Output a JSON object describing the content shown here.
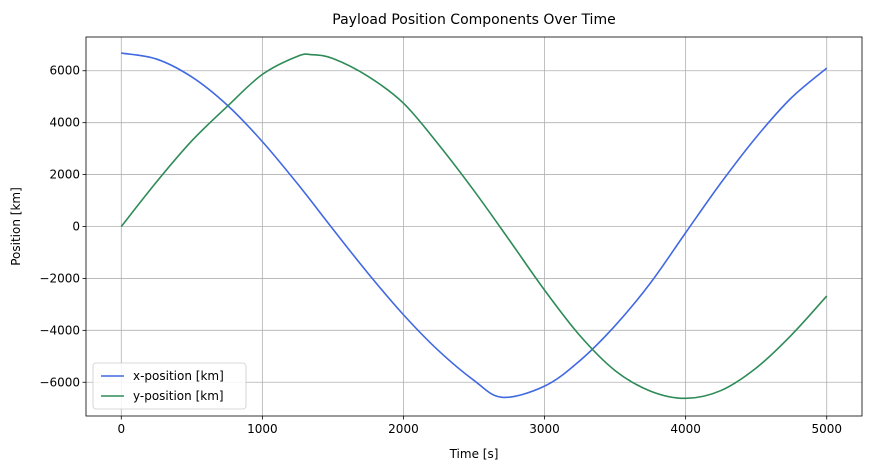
{
  "chart_data": {
    "type": "line",
    "title": "Payload Position Components Over Time",
    "xlabel": "Time [s]",
    "ylabel": "Position [km]",
    "xlim": [
      -250,
      5250
    ],
    "ylim": [
      -7300,
      7300
    ],
    "xticks": [
      0,
      1000,
      2000,
      3000,
      4000,
      5000
    ],
    "xtick_labels": [
      "0",
      "1000",
      "2000",
      "3000",
      "4000",
      "5000"
    ],
    "yticks": [
      -6000,
      -4000,
      -2000,
      0,
      2000,
      4000,
      6000
    ],
    "ytick_labels": [
      "−6000",
      "−4000",
      "−2000",
      "0",
      "2000",
      "4000",
      "6000"
    ],
    "grid": true,
    "legend_position": "lower-left",
    "series": [
      {
        "name": "x-position [km]",
        "color": "#4169e1",
        "x": [
          0,
          250,
          500,
          750,
          1000,
          1250,
          1500,
          1750,
          2000,
          2250,
          2500,
          2700,
          3000,
          3250,
          3500,
          3750,
          4000,
          4250,
          4500,
          4750,
          5000
        ],
        "y": [
          6680,
          6450,
          5760,
          4680,
          3270,
          1640,
          -100,
          -1810,
          -3400,
          -4790,
          -5930,
          -6580,
          -6150,
          -5170,
          -3820,
          -2180,
          -240,
          1680,
          3440,
          4960,
          6100
        ]
      },
      {
        "name": "y-position [km]",
        "color": "#2e8b57",
        "x": [
          0,
          250,
          500,
          750,
          1000,
          1250,
          1350,
          1500,
          1750,
          2000,
          2250,
          2500,
          2750,
          3000,
          3250,
          3500,
          3750,
          4000,
          4250,
          4500,
          4750,
          5000
        ],
        "y": [
          0,
          1720,
          3300,
          4620,
          5860,
          6560,
          6620,
          6470,
          5780,
          4750,
          3150,
          1380,
          -520,
          -2450,
          -4200,
          -5550,
          -6340,
          -6620,
          -6320,
          -5450,
          -4180,
          -2680
        ]
      }
    ]
  }
}
